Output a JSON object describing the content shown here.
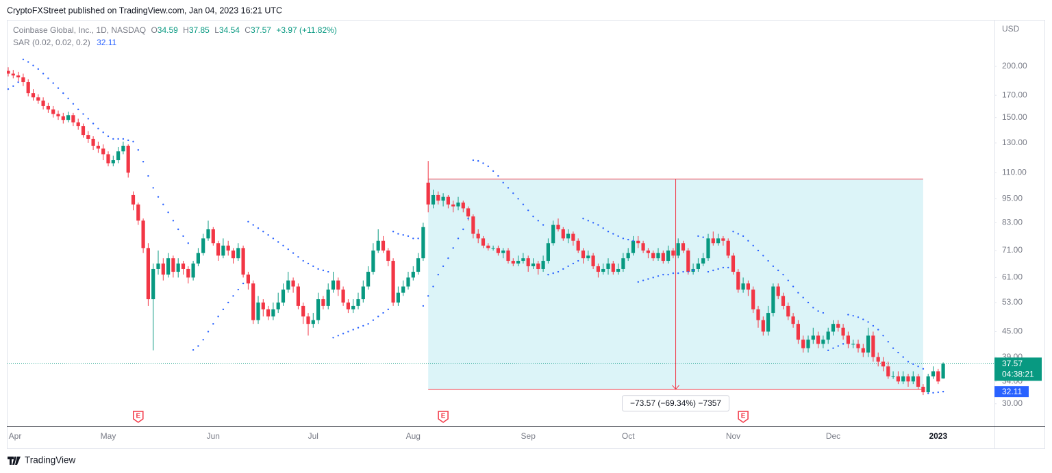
{
  "header": {
    "published": "CryptoFXStreet published on TradingView.com, Jan 04, 2023 16:21 UTC",
    "brand": "TradingView"
  },
  "chart_data": {
    "type": "candlestick",
    "symbol": "Coinbase Global, Inc., 1D, NASDAQ",
    "ohlc_labels": [
      "O",
      "H",
      "L",
      "C"
    ],
    "change": "+3.97 (+11.82%)",
    "currency": "USD",
    "countdown": "04:38:21",
    "log_scale": true,
    "up_color": "#089981",
    "down_color": "#f23645",
    "ylim": [
      26.4,
      258.8
    ],
    "yticks": [
      {
        "value": 200,
        "label": "200.00"
      },
      {
        "value": 170,
        "label": "170.00"
      },
      {
        "value": 150,
        "label": "150.00"
      },
      {
        "value": 130,
        "label": "130.00"
      },
      {
        "value": 110,
        "label": "110.00"
      },
      {
        "value": 95,
        "label": "95.00"
      },
      {
        "value": 83,
        "label": "83.00"
      },
      {
        "value": 71,
        "label": "71.00"
      },
      {
        "value": 61,
        "label": "61.00"
      },
      {
        "value": 53,
        "label": "53.00"
      },
      {
        "value": 45,
        "label": "45.00"
      },
      {
        "value": 39,
        "label": "39.00"
      },
      {
        "value": 34,
        "label": "34.00"
      },
      {
        "value": 30,
        "label": "30.00"
      }
    ],
    "categories": [
      "Apr",
      null,
      null,
      null,
      null,
      null,
      null,
      null,
      null,
      null,
      null,
      null,
      null,
      null,
      null,
      null,
      null,
      null,
      null,
      null,
      "May",
      null,
      null,
      null,
      null,
      null,
      null,
      null,
      null,
      null,
      null,
      null,
      null,
      null,
      null,
      null,
      null,
      null,
      null,
      null,
      null,
      "Jun",
      null,
      null,
      null,
      null,
      null,
      null,
      null,
      null,
      null,
      null,
      null,
      null,
      null,
      null,
      null,
      null,
      null,
      null,
      null,
      "Jul",
      null,
      null,
      null,
      null,
      null,
      null,
      null,
      null,
      null,
      null,
      null,
      null,
      null,
      null,
      null,
      null,
      null,
      null,
      null,
      "Aug",
      null,
      null,
      null,
      null,
      null,
      null,
      null,
      null,
      null,
      null,
      null,
      null,
      null,
      null,
      null,
      null,
      null,
      null,
      null,
      null,
      null,
      null,
      "Sep",
      null,
      null,
      null,
      null,
      null,
      null,
      null,
      null,
      null,
      null,
      null,
      null,
      null,
      null,
      null,
      null,
      null,
      null,
      null,
      "Oct",
      null,
      null,
      null,
      null,
      null,
      null,
      null,
      null,
      null,
      null,
      null,
      null,
      null,
      null,
      null,
      null,
      null,
      null,
      null,
      null,
      "Nov",
      null,
      null,
      null,
      null,
      null,
      null,
      null,
      null,
      null,
      null,
      null,
      null,
      null,
      null,
      null,
      null,
      null,
      null,
      null,
      "Dec",
      null,
      null,
      null,
      null,
      null,
      null,
      null,
      null,
      null,
      null,
      null,
      null,
      null,
      null,
      null,
      null,
      null,
      null,
      null,
      null,
      "2023",
      null
    ],
    "open": [
      195,
      192,
      190,
      188,
      183,
      172,
      168,
      165,
      160,
      157,
      153,
      151,
      148,
      152,
      146,
      143,
      136,
      133,
      128,
      126,
      122,
      116,
      118,
      124,
      128,
      97,
      92,
      84,
      72,
      54,
      64,
      66,
      62,
      68,
      63,
      66,
      64,
      61,
      66,
      70,
      76,
      80,
      74,
      69,
      73,
      71,
      68,
      72,
      62,
      59,
      48,
      53,
      51,
      49,
      51,
      53,
      57,
      60,
      58,
      52,
      49,
      47,
      48,
      54,
      52,
      57,
      60,
      57,
      53,
      51,
      52,
      54,
      58,
      63,
      71,
      75,
      71,
      67,
      53,
      56,
      58,
      61,
      63,
      68,
      104,
      92,
      97,
      94,
      96,
      92,
      91,
      93,
      90,
      86,
      78,
      76,
      73,
      72,
      72,
      70,
      71,
      67,
      66,
      67,
      68,
      65,
      66,
      64,
      67,
      74,
      82,
      80,
      76,
      78,
      75,
      71,
      68,
      69,
      65,
      63,
      64,
      66,
      63,
      64,
      68,
      70,
      75,
      74,
      71,
      70,
      68,
      70,
      67,
      71,
      69,
      74,
      71,
      63,
      64,
      66,
      68,
      76,
      74,
      76,
      75,
      69,
      63,
      57,
      59,
      57,
      51,
      48,
      45,
      50,
      58,
      55,
      52,
      49,
      47,
      43,
      41,
      43,
      44,
      42,
      43,
      45,
      47,
      46,
      44,
      42,
      42,
      41,
      40,
      44,
      39,
      38,
      37,
      35,
      35,
      34,
      35,
      34,
      35,
      33,
      32,
      35,
      36,
      34.59
    ],
    "high": [
      199,
      196,
      194,
      192,
      186,
      176,
      171,
      168,
      163,
      160,
      156,
      154,
      155,
      154,
      149,
      145,
      139,
      135,
      131,
      129,
      124,
      121,
      127,
      131,
      129,
      99,
      93,
      85,
      74,
      66,
      71,
      68,
      70,
      69,
      68,
      67,
      65,
      67,
      72,
      78,
      84,
      81,
      75,
      76,
      75,
      72,
      74,
      73,
      63,
      60,
      55,
      54,
      52,
      53,
      56,
      59,
      63,
      61,
      59,
      53,
      50,
      50,
      56,
      55,
      59,
      63,
      61,
      58,
      54,
      54,
      56,
      60,
      65,
      74,
      80,
      77,
      72,
      68,
      58,
      60,
      63,
      65,
      70,
      83,
      117.5,
      100,
      99,
      98,
      97,
      94,
      96,
      94,
      91,
      87,
      80,
      77,
      74,
      73,
      73,
      72,
      72,
      68,
      69,
      70,
      69,
      68,
      67,
      69,
      76,
      84,
      85,
      81,
      80,
      79,
      76,
      72,
      71,
      70,
      66,
      66,
      68,
      67,
      66,
      70,
      72,
      77,
      77,
      75,
      72,
      71,
      72,
      71,
      73,
      72,
      76,
      75,
      72,
      66,
      68,
      70,
      78,
      79,
      78,
      77,
      76,
      70,
      64,
      61,
      60,
      58,
      52,
      49,
      52,
      59,
      59,
      56,
      53,
      50,
      48,
      44,
      44,
      46,
      45,
      44,
      46,
      48,
      48,
      47,
      45,
      43,
      43,
      42,
      46,
      45,
      40,
      39,
      38,
      36,
      36,
      36,
      35.5,
      36,
      35.5,
      33.5,
      35.5,
      37,
      36.5,
      37.85
    ],
    "low": [
      189,
      187,
      184,
      179,
      169,
      165,
      162,
      157,
      154,
      150,
      148,
      145,
      146,
      143,
      140,
      134,
      130,
      125,
      123,
      118,
      114,
      114,
      116,
      122,
      107,
      89,
      82,
      70,
      52,
      40.5,
      62,
      60,
      61,
      61,
      61,
      62,
      59,
      60,
      65,
      69,
      75,
      73,
      67,
      68,
      69,
      66,
      67,
      61,
      57,
      47,
      47,
      49,
      48,
      48,
      50,
      52,
      56,
      56,
      51,
      47,
      44,
      46,
      47,
      51,
      51,
      56,
      55,
      52,
      50,
      50,
      51,
      53,
      57,
      62,
      70,
      70,
      65,
      52,
      52,
      55,
      57,
      60,
      62,
      67,
      88,
      90,
      92,
      91,
      90,
      88,
      89,
      88,
      84,
      76,
      74,
      72,
      71,
      71,
      69,
      68,
      66,
      65,
      65,
      66,
      63,
      64,
      62,
      63,
      66,
      73,
      79,
      75,
      74,
      73,
      70,
      66,
      67,
      64,
      61,
      62,
      62,
      62,
      62,
      63,
      67,
      69,
      72,
      70,
      68,
      67,
      67,
      66,
      66,
      68,
      68,
      70,
      62,
      62,
      63,
      65,
      67,
      73,
      73,
      73,
      68,
      62,
      56,
      56,
      55,
      50,
      46,
      44,
      44,
      49,
      54,
      51,
      48,
      46,
      42,
      40,
      40,
      42,
      41,
      41,
      42,
      44,
      45,
      43,
      41,
      41,
      40,
      39,
      39,
      38,
      37,
      36,
      34.5,
      34.5,
      33.5,
      33.5,
      33,
      33.5,
      32.5,
      31.5,
      31.8,
      34.5,
      33.5,
      34.54
    ],
    "close": [
      192,
      190,
      188,
      183,
      172,
      168,
      165,
      160,
      157,
      153,
      151,
      148,
      152,
      146,
      143,
      136,
      133,
      128,
      126,
      122,
      116,
      118,
      124,
      128,
      110,
      92,
      84,
      72,
      54,
      64,
      66,
      62,
      68,
      63,
      66,
      64,
      61,
      66,
      70,
      76,
      80,
      74,
      69,
      73,
      71,
      68,
      72,
      62,
      59,
      48,
      53,
      51,
      49,
      51,
      53,
      57,
      60,
      58,
      52,
      49,
      47,
      48,
      54,
      52,
      57,
      60,
      57,
      53,
      51,
      52,
      54,
      58,
      63,
      71,
      75,
      71,
      67,
      53,
      56,
      58,
      61,
      63,
      68,
      81,
      92,
      97,
      94,
      96,
      92,
      91,
      93,
      90,
      86,
      78,
      76,
      73,
      72,
      72,
      70,
      71,
      67,
      66,
      67,
      68,
      65,
      66,
      64,
      67,
      74,
      82,
      80,
      76,
      78,
      75,
      71,
      68,
      69,
      65,
      63,
      64,
      66,
      63,
      64,
      68,
      70,
      75,
      74,
      71,
      70,
      68,
      70,
      67,
      71,
      69,
      74,
      71,
      63,
      64,
      66,
      68,
      76,
      74,
      76,
      75,
      69,
      63,
      57,
      59,
      57,
      51,
      48,
      45,
      50,
      58,
      55,
      52,
      49,
      47,
      43,
      41,
      43,
      44,
      42,
      43,
      45,
      47,
      46,
      44,
      42,
      42,
      41,
      40,
      44,
      39,
      38,
      37,
      35,
      35,
      34,
      35,
      34,
      35,
      33,
      32,
      35,
      36,
      34,
      37.57
    ],
    "indicator": {
      "name": "SAR (0.02, 0.02, 0.2)",
      "color": "#2962ff",
      "values": [
        176,
        179,
        183,
        208,
        205,
        201,
        197,
        192,
        187,
        182,
        177,
        172,
        167,
        162,
        157,
        153,
        149,
        145,
        141,
        138,
        135,
        133,
        133,
        133,
        132,
        131,
        125,
        117,
        108,
        101,
        96,
        92,
        88,
        84,
        80,
        77,
        74,
        40.6,
        41.5,
        43,
        45,
        47,
        49,
        51,
        53,
        55,
        57,
        59,
        83.5,
        82,
        80.5,
        79,
        77.5,
        76,
        74.5,
        73,
        71.5,
        70,
        68.5,
        67,
        66,
        65,
        64,
        63.5,
        63,
        43.5,
        44,
        44.5,
        45,
        45.5,
        46,
        46.5,
        47,
        48,
        49,
        50,
        51,
        79,
        78,
        77.5,
        77,
        76,
        76,
        52,
        55,
        58,
        62,
        65,
        68,
        72,
        76,
        80,
        85,
        118,
        117.5,
        116,
        114,
        111,
        108,
        104,
        101,
        98,
        95,
        92,
        89,
        86,
        84,
        82,
        62,
        62.5,
        63,
        64,
        65,
        66,
        67,
        85,
        84,
        83,
        82,
        80.5,
        79,
        78,
        77,
        76,
        75.5,
        75,
        59.5,
        60,
        60.5,
        61,
        61.5,
        62,
        62,
        62.5,
        62.5,
        63,
        63,
        63.5,
        77,
        76.5,
        63,
        63.5,
        64,
        64.5,
        64.5,
        79,
        78,
        77,
        75,
        73,
        71,
        69,
        67,
        65,
        63.5,
        62,
        60,
        58,
        56,
        54.5,
        53,
        51.5,
        50.5,
        50,
        40.5,
        41,
        41.5,
        42,
        49.5,
        49.2,
        48.8,
        48.2,
        47.5,
        46.5,
        45.5,
        44,
        42.5,
        41,
        40,
        39,
        38,
        37.5,
        37,
        36.5,
        31.8,
        31.9,
        32,
        32.11
      ]
    },
    "measure": {
      "start": 84,
      "end": 183,
      "top": 106.1,
      "bottom": 32.53,
      "label": "−73.57 (−69.34%) −7357",
      "fill": "#dcf4f8",
      "color": "#f23645"
    },
    "earnings": [
      {
        "index": 26,
        "label": "E"
      },
      {
        "index": 87,
        "label": "E"
      },
      {
        "index": 147,
        "label": "E"
      }
    ]
  }
}
